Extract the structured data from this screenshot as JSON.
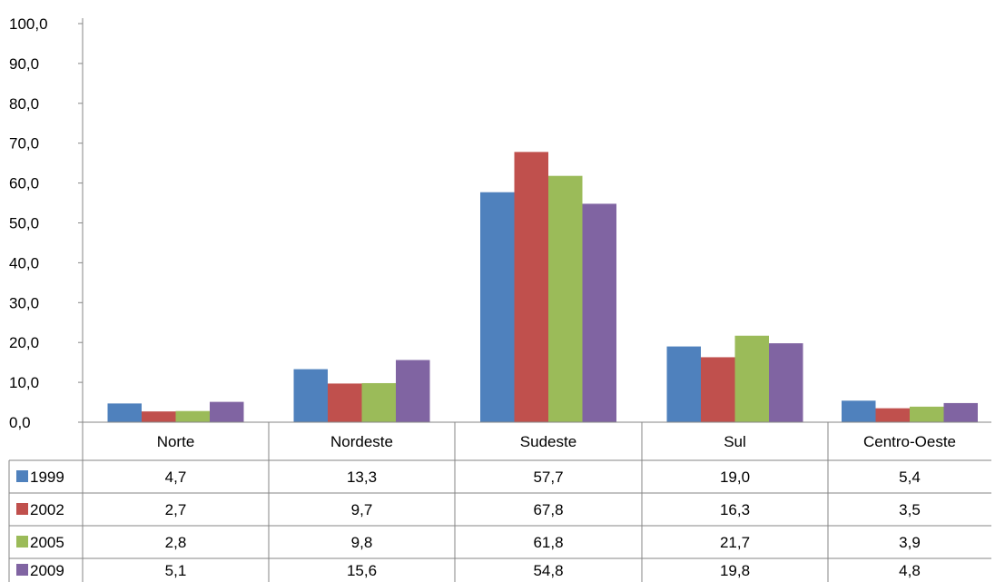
{
  "chart_data": {
    "type": "bar",
    "categories": [
      "Norte",
      "Nordeste",
      "Sudeste",
      "Sul",
      "Centro-Oeste"
    ],
    "series": [
      {
        "name": "1999",
        "values": [
          4.7,
          13.3,
          57.7,
          19.0,
          5.4
        ],
        "labels": [
          "4,7",
          "13,3",
          "57,7",
          "19,0",
          "5,4"
        ],
        "color": "#4F81BD"
      },
      {
        "name": "2002",
        "values": [
          2.7,
          9.7,
          67.8,
          16.3,
          3.5
        ],
        "labels": [
          "2,7",
          "9,7",
          "67,8",
          "16,3",
          "3,5"
        ],
        "color": "#C0504D"
      },
      {
        "name": "2005",
        "values": [
          2.8,
          9.8,
          61.8,
          21.7,
          3.9
        ],
        "labels": [
          "2,8",
          "9,8",
          "61,8",
          "21,7",
          "3,9"
        ],
        "color": "#9BBB59"
      },
      {
        "name": "2009",
        "values": [
          5.1,
          15.6,
          54.8,
          19.8,
          4.8
        ],
        "labels": [
          "5,1",
          "15,6",
          "54,8",
          "19,8",
          "4,8"
        ],
        "color": "#8064A2"
      }
    ],
    "y_ticks": [
      "0,0",
      "10,0",
      "20,0",
      "30,0",
      "40,0",
      "50,0",
      "60,0",
      "70,0",
      "80,0",
      "90,0",
      "100,0"
    ],
    "ylim": [
      0,
      100
    ],
    "grid": false,
    "legend": "data-table-left"
  }
}
